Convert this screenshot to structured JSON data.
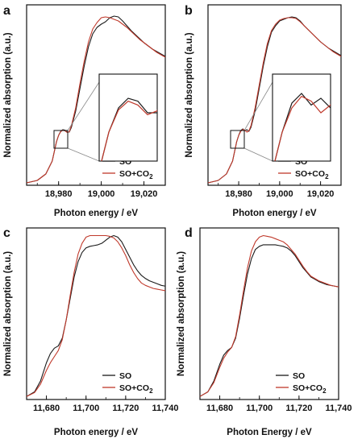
{
  "colors": {
    "series_black": "#1a1a1a",
    "series_red": "#c0392b",
    "axis": "#111111"
  },
  "chart_data": [
    {
      "panel": "a",
      "type": "line",
      "xlabel": "Photon energy / eV",
      "ylabel": "Normalized absorption (a.u.)",
      "xlim": [
        18965,
        19030
      ],
      "ylim": [
        0,
        1.12
      ],
      "yticks_labeled": false,
      "xticks": [
        {
          "value": 18980,
          "label": "18,980"
        },
        {
          "value": 19000,
          "label": "19,000"
        },
        {
          "value": 19020,
          "label": "19,020"
        }
      ],
      "legend": {
        "position": "bottom-right",
        "entries": [
          "SO",
          "SO+CO2"
        ]
      },
      "inset": {
        "present": true,
        "zoom_region_x": [
          18979,
          18985
        ],
        "zoom_region_y": [
          0.28,
          0.37
        ]
      },
      "series": [
        {
          "name": "SO",
          "color": "#1a1a1a",
          "x": [
            18965,
            18970,
            18974,
            18977,
            18979,
            18980,
            18981,
            18982,
            18983,
            18984,
            18985,
            18986,
            18988,
            18990,
            18992,
            18994,
            18996,
            18998,
            19000,
            19002,
            19004,
            19006,
            19008,
            19010,
            19012,
            19014,
            19016,
            19018,
            19020,
            19022,
            19024,
            19026,
            19028,
            19030
          ],
          "y": [
            0.015,
            0.03,
            0.07,
            0.15,
            0.27,
            0.31,
            0.335,
            0.345,
            0.342,
            0.33,
            0.33,
            0.36,
            0.46,
            0.6,
            0.74,
            0.86,
            0.94,
            0.98,
            1.0,
            1.015,
            1.04,
            1.05,
            1.045,
            1.02,
            0.99,
            0.96,
            0.935,
            0.91,
            0.885,
            0.865,
            0.845,
            0.83,
            0.815,
            0.8
          ]
        },
        {
          "name": "SO+CO2",
          "color": "#c0392b",
          "x": [
            18965,
            18970,
            18974,
            18977,
            18979,
            18980,
            18981,
            18982,
            18983,
            18984,
            18985,
            18986,
            18988,
            18990,
            18992,
            18994,
            18996,
            18998,
            19000,
            19002,
            19004,
            19006,
            19008,
            19010,
            19012,
            19014,
            19016,
            19018,
            19020,
            19022,
            19024,
            19026,
            19028,
            19030
          ],
          "y": [
            0.015,
            0.03,
            0.07,
            0.15,
            0.27,
            0.31,
            0.333,
            0.342,
            0.338,
            0.328,
            0.332,
            0.37,
            0.48,
            0.63,
            0.77,
            0.89,
            0.97,
            1.01,
            1.04,
            1.045,
            1.04,
            1.03,
            1.02,
            1.0,
            0.98,
            0.955,
            0.93,
            0.905,
            0.885,
            0.865,
            0.845,
            0.825,
            0.81,
            0.795
          ]
        }
      ]
    },
    {
      "panel": "b",
      "type": "line",
      "xlabel": "Photon energy / eV",
      "ylabel": "Normalized absorption (a.u.)",
      "xlim": [
        18965,
        19030
      ],
      "ylim": [
        0,
        1.12
      ],
      "yticks_labeled": false,
      "xticks": [
        {
          "value": 18980,
          "label": "18,980"
        },
        {
          "value": 19000,
          "label": "19,000"
        },
        {
          "value": 19020,
          "label": "19,020"
        }
      ],
      "legend": {
        "position": "bottom-right",
        "entries": [
          "SO",
          "SO+CO2"
        ]
      },
      "inset": {
        "present": true,
        "zoom_region_x": [
          18979,
          18985
        ],
        "zoom_region_y": [
          0.28,
          0.37
        ]
      },
      "series": [
        {
          "name": "SO",
          "color": "#1a1a1a",
          "x": [
            18965,
            18970,
            18974,
            18977,
            18979,
            18980,
            18981,
            18982,
            18983,
            18984,
            18985,
            18986,
            18988,
            18990,
            18992,
            18994,
            18996,
            18998,
            19000,
            19002,
            19004,
            19006,
            19008,
            19010,
            19012,
            19014,
            19016,
            19018,
            19020,
            19022,
            19024,
            19026,
            19028,
            19030
          ],
          "y": [
            0.015,
            0.03,
            0.07,
            0.15,
            0.27,
            0.31,
            0.34,
            0.35,
            0.338,
            0.345,
            0.335,
            0.36,
            0.46,
            0.6,
            0.74,
            0.86,
            0.95,
            0.99,
            1.02,
            1.03,
            1.04,
            1.045,
            1.04,
            1.02,
            0.99,
            0.965,
            0.94,
            0.915,
            0.89,
            0.87,
            0.85,
            0.835,
            0.82,
            0.805
          ]
        },
        {
          "name": "SO+CO2",
          "color": "#c0392b",
          "x": [
            18965,
            18970,
            18974,
            18977,
            18979,
            18980,
            18981,
            18982,
            18983,
            18984,
            18985,
            18986,
            18988,
            18990,
            18992,
            18994,
            18996,
            18998,
            19000,
            19002,
            19004,
            19006,
            19008,
            19010,
            19012,
            19014,
            19016,
            19018,
            19020,
            19022,
            19024,
            19026,
            19028,
            19030
          ],
          "y": [
            0.015,
            0.03,
            0.07,
            0.15,
            0.27,
            0.31,
            0.335,
            0.347,
            0.342,
            0.33,
            0.338,
            0.37,
            0.48,
            0.62,
            0.76,
            0.88,
            0.96,
            1.0,
            1.025,
            1.035,
            1.04,
            1.04,
            1.035,
            1.015,
            0.99,
            0.965,
            0.94,
            0.915,
            0.89,
            0.87,
            0.85,
            0.83,
            0.815,
            0.8
          ]
        }
      ]
    },
    {
      "panel": "c",
      "type": "line",
      "xlabel": "Photon energy / eV",
      "ylabel": "Normalized absorption (a.u.)",
      "xlim": [
        11670,
        11740
      ],
      "ylim": [
        0,
        1.12
      ],
      "yticks_labeled": false,
      "xticks": [
        {
          "value": 11680,
          "label": "11,680"
        },
        {
          "value": 11700,
          "label": "11,700"
        },
        {
          "value": 11720,
          "label": "11,720"
        },
        {
          "value": 11740,
          "label": "11,740"
        }
      ],
      "legend": {
        "position": "bottom-right",
        "entries": [
          "SO",
          "SO+CO2"
        ]
      },
      "series": [
        {
          "name": "SO",
          "color": "#1a1a1a",
          "x": [
            11670,
            11674,
            11677,
            11680,
            11682,
            11684,
            11686,
            11688,
            11690,
            11692,
            11694,
            11696,
            11698,
            11700,
            11702,
            11704,
            11706,
            11708,
            11710,
            11712,
            11714,
            11716,
            11718,
            11720,
            11722,
            11724,
            11726,
            11728,
            11730,
            11732,
            11734,
            11736,
            11738,
            11740
          ],
          "y": [
            0.02,
            0.05,
            0.12,
            0.24,
            0.3,
            0.335,
            0.35,
            0.4,
            0.52,
            0.66,
            0.8,
            0.9,
            0.96,
            0.99,
            1.0,
            1.005,
            1.01,
            1.02,
            1.04,
            1.06,
            1.07,
            1.06,
            1.03,
            0.98,
            0.93,
            0.88,
            0.84,
            0.81,
            0.79,
            0.775,
            0.765,
            0.755,
            0.745,
            0.74
          ]
        },
        {
          "name": "SO+CO2",
          "color": "#c0392b",
          "x": [
            11670,
            11674,
            11677,
            11680,
            11682,
            11684,
            11686,
            11688,
            11690,
            11692,
            11694,
            11696,
            11698,
            11700,
            11702,
            11704,
            11706,
            11708,
            11710,
            11712,
            11714,
            11716,
            11718,
            11720,
            11722,
            11724,
            11726,
            11728,
            11730,
            11732,
            11734,
            11736,
            11738,
            11740
          ],
          "y": [
            0.02,
            0.045,
            0.1,
            0.19,
            0.24,
            0.28,
            0.32,
            0.39,
            0.52,
            0.68,
            0.83,
            0.95,
            1.02,
            1.06,
            1.07,
            1.07,
            1.07,
            1.07,
            1.07,
            1.065,
            1.055,
            1.03,
            0.99,
            0.94,
            0.88,
            0.83,
            0.79,
            0.76,
            0.745,
            0.735,
            0.725,
            0.72,
            0.715,
            0.71
          ]
        }
      ]
    },
    {
      "panel": "d",
      "type": "line",
      "xlabel": "Photon Energy / eV",
      "ylabel": "Normalized absorption (a.u.)",
      "xlim": [
        11670,
        11740
      ],
      "ylim": [
        0,
        1.12
      ],
      "yticks_labeled": false,
      "xticks": [
        {
          "value": 11680,
          "label": "11,680"
        },
        {
          "value": 11700,
          "label": "11,700"
        },
        {
          "value": 11720,
          "label": "11,720"
        },
        {
          "value": 11740,
          "label": "11,740"
        }
      ],
      "legend": {
        "position": "bottom-right",
        "entries": [
          "SO",
          "SO+CO2"
        ]
      },
      "series": [
        {
          "name": "SO",
          "color": "#1a1a1a",
          "x": [
            11670,
            11674,
            11677,
            11680,
            11682,
            11684,
            11686,
            11688,
            11690,
            11692,
            11694,
            11696,
            11698,
            11700,
            11702,
            11704,
            11706,
            11708,
            11710,
            11712,
            11714,
            11716,
            11718,
            11720,
            11722,
            11724,
            11726,
            11728,
            11730,
            11732,
            11734,
            11736,
            11738,
            11740
          ],
          "y": [
            0.02,
            0.05,
            0.12,
            0.23,
            0.29,
            0.32,
            0.34,
            0.4,
            0.53,
            0.68,
            0.82,
            0.92,
            0.98,
            1.0,
            1.01,
            1.01,
            1.01,
            1.01,
            1.005,
            1.0,
            0.99,
            0.97,
            0.94,
            0.9,
            0.86,
            0.83,
            0.8,
            0.785,
            0.77,
            0.76,
            0.75,
            0.745,
            0.74,
            0.735
          ]
        },
        {
          "name": "SO+CO2",
          "color": "#c0392b",
          "x": [
            11670,
            11674,
            11677,
            11680,
            11682,
            11684,
            11686,
            11688,
            11690,
            11692,
            11694,
            11696,
            11698,
            11700,
            11702,
            11704,
            11706,
            11708,
            11710,
            11712,
            11714,
            11716,
            11718,
            11720,
            11722,
            11724,
            11726,
            11728,
            11730,
            11732,
            11734,
            11736,
            11738,
            11740
          ],
          "y": [
            0.02,
            0.05,
            0.11,
            0.21,
            0.27,
            0.31,
            0.34,
            0.41,
            0.55,
            0.71,
            0.86,
            0.97,
            1.03,
            1.06,
            1.07,
            1.065,
            1.06,
            1.05,
            1.04,
            1.03,
            1.01,
            0.98,
            0.95,
            0.91,
            0.87,
            0.835,
            0.805,
            0.79,
            0.775,
            0.765,
            0.755,
            0.745,
            0.74,
            0.735
          ]
        }
      ]
    }
  ]
}
